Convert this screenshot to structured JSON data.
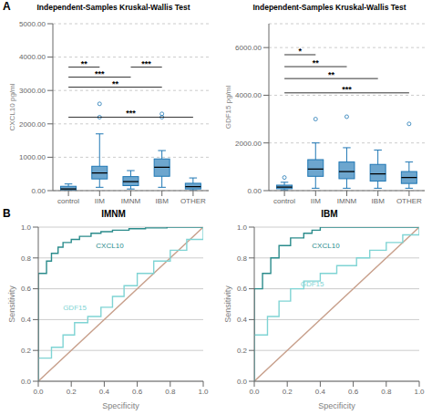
{
  "chart_data": [
    {
      "type": "box",
      "title": "Independent-Samples Kruskal-Wallis Test",
      "y_label": "CXCL10  pg/ml",
      "categories": [
        "control",
        "IIM",
        "IMNM",
        "IBM",
        "OTHER"
      ],
      "boxes": [
        {
          "q1": 0,
          "median": 50,
          "q3": 130,
          "whislo": 0,
          "whishi": 200,
          "fliers": []
        },
        {
          "q1": 350,
          "median": 530,
          "q3": 730,
          "whislo": 100,
          "whishi": 1700,
          "fliers": [
            2200,
            2600
          ]
        },
        {
          "q1": 150,
          "median": 270,
          "q3": 420,
          "whislo": 50,
          "whishi": 600,
          "fliers": []
        },
        {
          "q1": 430,
          "median": 700,
          "q3": 950,
          "whislo": 100,
          "whishi": 1200,
          "fliers": [
            2200,
            2300
          ]
        },
        {
          "q1": 50,
          "median": 120,
          "q3": 220,
          "whislo": 0,
          "whishi": 380,
          "fliers": []
        }
      ],
      "color": "#1F77B4",
      "ylim": [
        0,
        5000
      ],
      "yticks": [
        {
          "value": 0,
          "label": "0.00"
        },
        {
          "value": 1000,
          "label": "1000.00"
        },
        {
          "value": 2000,
          "label": "2000.00"
        },
        {
          "value": 3000,
          "label": "3000.00"
        },
        {
          "value": 4000,
          "label": "4000.00"
        },
        {
          "value": 5000,
          "label": "5000.00"
        }
      ],
      "grid": true,
      "annotations": [
        {
          "text": "A"
        },
        {
          "x1": "control",
          "x2": "IIM",
          "y": 3700,
          "text": "**"
        },
        {
          "x1": "control",
          "x2": "IMNM",
          "y": 3400,
          "text": "***"
        },
        {
          "x1": "control",
          "x2": "IBM",
          "y": 3100,
          "text": "**"
        },
        {
          "x1": "control",
          "x2": "OTHER",
          "y": 2200,
          "text": "***"
        },
        {
          "x1": "IMNM",
          "x2": "IBM",
          "y": 3700,
          "text": "***"
        }
      ]
    },
    {
      "type": "box",
      "title": "Independent-Samples Kruskal-Wallis Test",
      "y_label": "GDF15  pg/ml",
      "categories": [
        "control",
        "IIM",
        "IMNM",
        "IBM",
        "OTHER"
      ],
      "boxes": [
        {
          "q1": 80,
          "median": 150,
          "q3": 230,
          "whislo": 30,
          "whishi": 350,
          "fliers": [
            550
          ]
        },
        {
          "q1": 600,
          "median": 900,
          "q3": 1300,
          "whislo": 100,
          "whishi": 2000,
          "fliers": [
            3000
          ]
        },
        {
          "q1": 500,
          "median": 800,
          "q3": 1200,
          "whislo": 100,
          "whishi": 1800,
          "fliers": [
            3100
          ]
        },
        {
          "q1": 400,
          "median": 700,
          "q3": 1100,
          "whislo": 100,
          "whishi": 1700,
          "fliers": []
        },
        {
          "q1": 300,
          "median": 550,
          "q3": 800,
          "whislo": 100,
          "whishi": 1200,
          "fliers": [
            2800
          ]
        }
      ],
      "color": "#1F77B4",
      "ylim": [
        0,
        7000
      ],
      "yticks": [
        {
          "value": 0,
          "label": "0.00"
        },
        {
          "value": 2000,
          "label": "2000.00"
        },
        {
          "value": 4000,
          "label": "4000.00"
        },
        {
          "value": 6000,
          "label": "6000.00"
        }
      ],
      "grid": true,
      "annotations": [
        {
          "x1": "control",
          "x2": "IIM",
          "y": 5700,
          "text": "*"
        },
        {
          "x1": "control",
          "x2": "IMNM",
          "y": 5200,
          "text": "**"
        },
        {
          "x1": "control",
          "x2": "IBM",
          "y": 4700,
          "text": "**"
        },
        {
          "x1": "control",
          "x2": "OTHER",
          "y": 4100,
          "text": "***"
        }
      ]
    },
    {
      "type": "line",
      "title": "IMNM",
      "x_label": "Specificity",
      "y_label": "Sensitivity",
      "xlim": [
        0,
        1
      ],
      "ylim": [
        0,
        1
      ],
      "xticks": [
        {
          "value": 0,
          "label": "0.0"
        },
        0.2,
        0.4,
        0.6,
        0.8,
        {
          "value": 1,
          "label": "1.0"
        }
      ],
      "yticks": [
        {
          "value": 0,
          "label": "0.0"
        },
        0.2,
        0.4,
        0.6,
        0.8,
        {
          "value": 1,
          "label": "1.0"
        }
      ],
      "grid": true,
      "series": [
        {
          "color": "#C8A08C",
          "x": [
            0,
            1
          ],
          "values": [
            0,
            1
          ]
        },
        {
          "color": "#2B8C8C",
          "line_style": "step",
          "x": [
            0.0,
            0.0,
            0.05,
            0.05,
            0.08,
            0.08,
            0.12,
            0.12,
            0.15,
            0.15,
            0.2,
            0.2,
            0.25,
            0.25,
            0.32,
            0.32,
            0.38,
            0.38,
            0.45,
            0.45,
            0.55,
            0.55,
            0.65,
            0.65,
            0.78,
            0.78,
            0.9,
            0.9,
            1.0
          ],
          "values": [
            0.0,
            0.7,
            0.7,
            0.78,
            0.78,
            0.83,
            0.83,
            0.87,
            0.87,
            0.9,
            0.9,
            0.92,
            0.92,
            0.94,
            0.94,
            0.96,
            0.96,
            0.97,
            0.97,
            0.98,
            0.98,
            0.99,
            0.99,
            0.995,
            0.995,
            1.0,
            1.0,
            1.0,
            1.0
          ]
        },
        {
          "color": "#7FD4D4",
          "line_style": "step",
          "x": [
            0.0,
            0.0,
            0.08,
            0.08,
            0.15,
            0.15,
            0.22,
            0.22,
            0.3,
            0.3,
            0.38,
            0.38,
            0.45,
            0.45,
            0.52,
            0.52,
            0.6,
            0.6,
            0.7,
            0.7,
            0.8,
            0.8,
            0.9,
            0.9,
            1.0
          ],
          "values": [
            0.0,
            0.15,
            0.15,
            0.22,
            0.22,
            0.3,
            0.3,
            0.38,
            0.38,
            0.42,
            0.42,
            0.48,
            0.48,
            0.55,
            0.55,
            0.62,
            0.62,
            0.7,
            0.7,
            0.78,
            0.78,
            0.85,
            0.85,
            0.92,
            1.0
          ]
        }
      ],
      "annotations": [
        {
          "text": "B"
        },
        {
          "text": "CXCL10",
          "x": 0.35,
          "y": 0.88,
          "color": "#2B8C8C"
        },
        {
          "text": "GDF15",
          "x": 0.15,
          "y": 0.48,
          "color": "#7FD4D4"
        }
      ]
    },
    {
      "type": "line",
      "title": "IBM",
      "x_label": "Specificity",
      "y_label": "Sensitivity",
      "xlim": [
        0,
        1
      ],
      "ylim": [
        0,
        1
      ],
      "xticks": [
        {
          "value": 0,
          "label": "0.0"
        },
        0.2,
        0.4,
        0.6,
        0.8,
        {
          "value": 1,
          "label": "1.0"
        }
      ],
      "yticks": [
        {
          "value": 0,
          "label": "0.0"
        },
        0.2,
        0.4,
        0.6,
        0.8,
        {
          "value": 1,
          "label": "1.0"
        }
      ],
      "grid": true,
      "series": [
        {
          "color": "#C8A08C",
          "x": [
            0,
            1
          ],
          "values": [
            0,
            1
          ]
        },
        {
          "color": "#2B8C8C",
          "line_style": "step",
          "x": [
            0.0,
            0.0,
            0.05,
            0.05,
            0.1,
            0.1,
            0.15,
            0.15,
            0.22,
            0.22,
            0.3,
            0.3,
            0.35,
            0.35,
            0.4,
            0.4,
            0.55,
            0.55,
            0.65,
            0.65,
            1.0
          ],
          "values": [
            0.0,
            0.6,
            0.6,
            0.7,
            0.7,
            0.8,
            0.8,
            0.88,
            0.88,
            0.93,
            0.93,
            0.96,
            0.96,
            0.98,
            0.98,
            1.0,
            1.0,
            1.0,
            1.0,
            1.0,
            1.0
          ]
        },
        {
          "color": "#7FD4D4",
          "line_style": "step",
          "x": [
            0.0,
            0.0,
            0.08,
            0.08,
            0.15,
            0.15,
            0.22,
            0.22,
            0.3,
            0.3,
            0.4,
            0.4,
            0.5,
            0.5,
            0.62,
            0.62,
            0.7,
            0.7,
            0.8,
            0.8,
            0.9,
            0.9,
            1.0
          ],
          "values": [
            0.0,
            0.3,
            0.3,
            0.42,
            0.42,
            0.52,
            0.52,
            0.6,
            0.6,
            0.65,
            0.65,
            0.7,
            0.7,
            0.75,
            0.75,
            0.8,
            0.8,
            0.85,
            0.85,
            0.9,
            0.9,
            0.95,
            1.0
          ]
        }
      ],
      "annotations": [
        {
          "text": "CXCL10",
          "x": 0.35,
          "y": 0.88,
          "color": "#2B8C8C"
        },
        {
          "text": "GDF15",
          "x": 0.28,
          "y": 0.63,
          "color": "#7FD4D4"
        }
      ]
    }
  ]
}
